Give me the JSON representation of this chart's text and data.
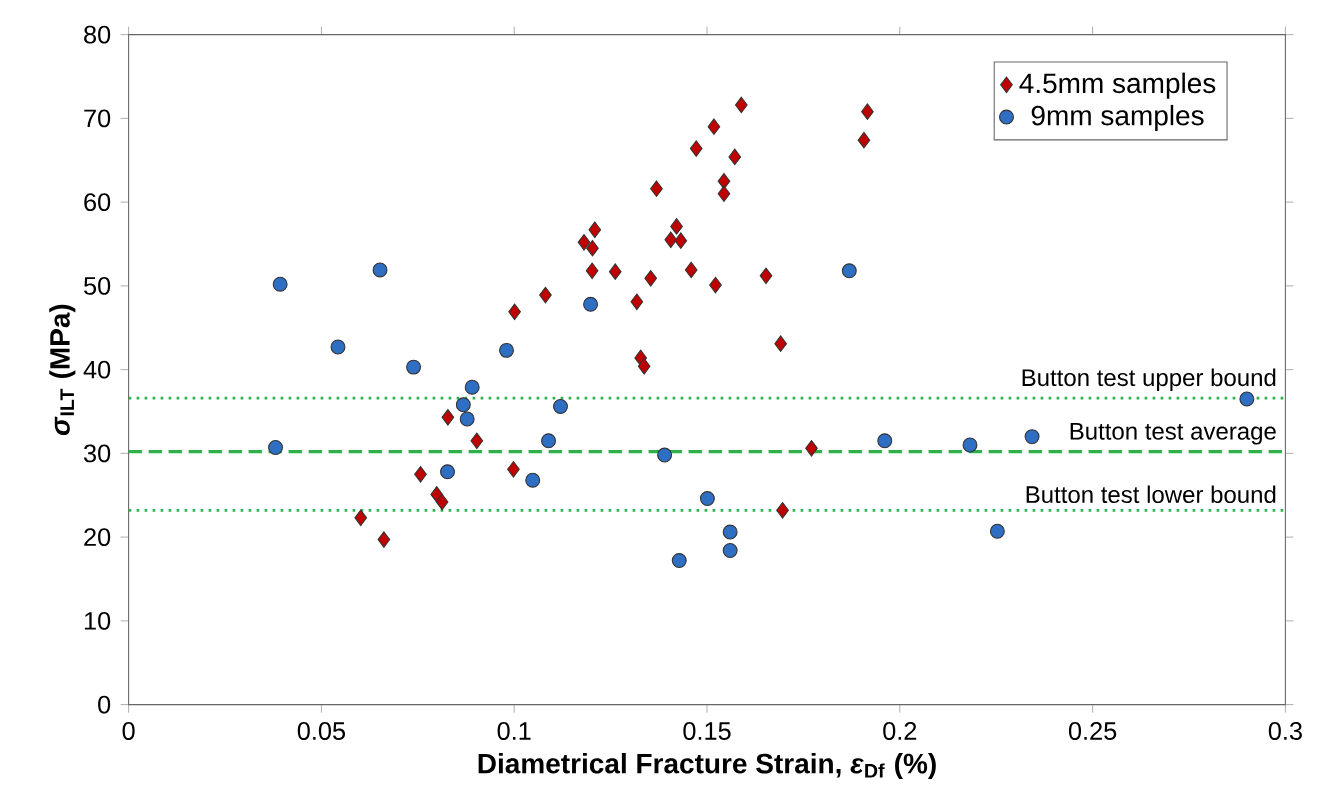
{
  "chart_data": {
    "type": "scatter",
    "xlabel": "Diametrical Fracture Strain, *ε*$_{Df}$ (%)",
    "ylabel": "*σ*$_{ILT}$ (MPa)",
    "xlim": [
      0,
      0.3
    ],
    "xticks": [
      0,
      0.05,
      0.1,
      0.15,
      0.2,
      0.25,
      0.3
    ],
    "ylim": [
      0,
      80
    ],
    "yticks": [
      0,
      10,
      20,
      30,
      40,
      50,
      60,
      70,
      80
    ],
    "grid": false,
    "legend": "top right",
    "series": [
      {
        "name": "4.5mm samples",
        "color": "#c00000",
        "marker": "diamond",
        "x": [
          0.1001,
          0.0828,
          0.0903,
          0.0757,
          0.0799,
          0.0813,
          0.0602,
          0.0662,
          0.0998,
          0.1589,
          0.1916,
          0.1518,
          0.1907,
          0.1472,
          0.1572,
          0.1544,
          0.1544,
          0.1369,
          0.1421,
          0.1406,
          0.1432,
          0.1209,
          0.1181,
          0.1203,
          0.1202,
          0.1262,
          0.1354,
          0.1459,
          0.1522,
          0.1653,
          0.1318,
          0.1081,
          0.1691,
          0.1328,
          0.1337,
          0.1771,
          0.1696
        ],
        "values": [
          46.9,
          34.3,
          31.5,
          27.5,
          25.1,
          24.2,
          22.3,
          19.7,
          28.1,
          71.6,
          70.8,
          69.0,
          67.4,
          66.4,
          65.4,
          62.5,
          61.0,
          61.6,
          57.1,
          55.5,
          55.4,
          56.7,
          55.2,
          54.5,
          51.8,
          51.7,
          50.9,
          51.9,
          50.1,
          51.2,
          48.1,
          48.9,
          43.1,
          41.4,
          40.4,
          30.6,
          23.2
        ]
      },
      {
        "name": "9mm samples",
        "color": "#2e6fc4",
        "marker": "circle",
        "x": [
          0.0393,
          0.0652,
          0.0543,
          0.0739,
          0.098,
          0.0891,
          0.0868,
          0.0878,
          0.0381,
          0.0827,
          0.1198,
          0.1869,
          0.112,
          0.1089,
          0.1048,
          0.139,
          0.1961,
          0.1501,
          0.156,
          0.156,
          0.1428,
          0.29,
          0.2182,
          0.2343,
          0.2253
        ],
        "values": [
          50.2,
          51.9,
          42.7,
          40.3,
          42.3,
          37.9,
          35.8,
          34.1,
          30.7,
          27.8,
          47.8,
          51.8,
          35.6,
          31.5,
          26.8,
          29.8,
          31.5,
          24.6,
          20.6,
          18.4,
          17.2,
          36.5,
          31.0,
          32.0,
          20.7
        ]
      }
    ],
    "ref_lines": [
      {
        "axis": "y",
        "value": 36.6,
        "label": "Button test upper bound",
        "color": "#2eb04b",
        "line_style": "dotted"
      },
      {
        "axis": "y",
        "value": 30.2,
        "label": "Button test average",
        "color": "#2eb04b",
        "line_style": "dashed"
      },
      {
        "axis": "y",
        "value": 23.2,
        "label": "Button test lower bound",
        "color": "#2eb04b",
        "line_style": "dotted"
      }
    ]
  }
}
